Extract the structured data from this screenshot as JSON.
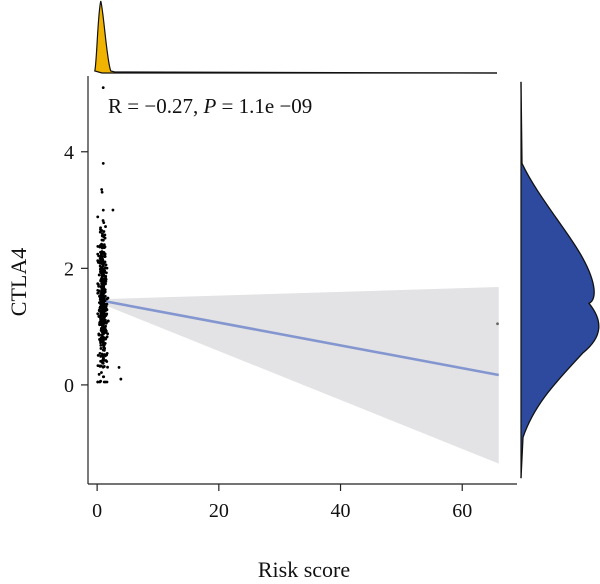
{
  "chart_data": {
    "type": "scatter",
    "title": "",
    "xlabel": "Risk score",
    "ylabel": "CTLA4",
    "xlim": [
      -1.5,
      69
    ],
    "ylim": [
      -1.7,
      5.3
    ],
    "xticks": [
      0,
      20,
      40,
      60
    ],
    "yticks": [
      0,
      2,
      4
    ],
    "annotation": {
      "r_text": "R = −0.27, ",
      "p_label": "P",
      "p_text": " = 1.1e −09"
    },
    "regression": {
      "x": [
        0.5,
        66
      ],
      "y": [
        1.45,
        0.17
      ],
      "ci_upper": [
        1.47,
        1.68
      ],
      "ci_lower": [
        1.4,
        -1.35
      ]
    },
    "scatter": {
      "cluster": {
        "x_range": [
          0.1,
          2.2
        ],
        "y_range": [
          0.05,
          3.8
        ],
        "count": 420
      },
      "outliers": [
        {
          "x": 65.8,
          "y": 1.05
        },
        {
          "x": 3.6,
          "y": 0.3
        },
        {
          "x": 3.9,
          "y": 0.1
        },
        {
          "x": 2.6,
          "y": 3.0
        },
        {
          "x": 1.0,
          "y": 5.1
        }
      ]
    },
    "marginal_x": {
      "type": "density",
      "color": "#F0B400",
      "peak_x": 0.6
    },
    "marginal_y": {
      "type": "density",
      "color": "#2E4A9E",
      "peaks_y": [
        1.9,
        1.0
      ]
    },
    "colors": {
      "points": "#000000",
      "line": "#8496CF",
      "ci_band": "#E3E3E5",
      "x_density": "#F0B400",
      "y_density": "#2E4A9E"
    }
  }
}
